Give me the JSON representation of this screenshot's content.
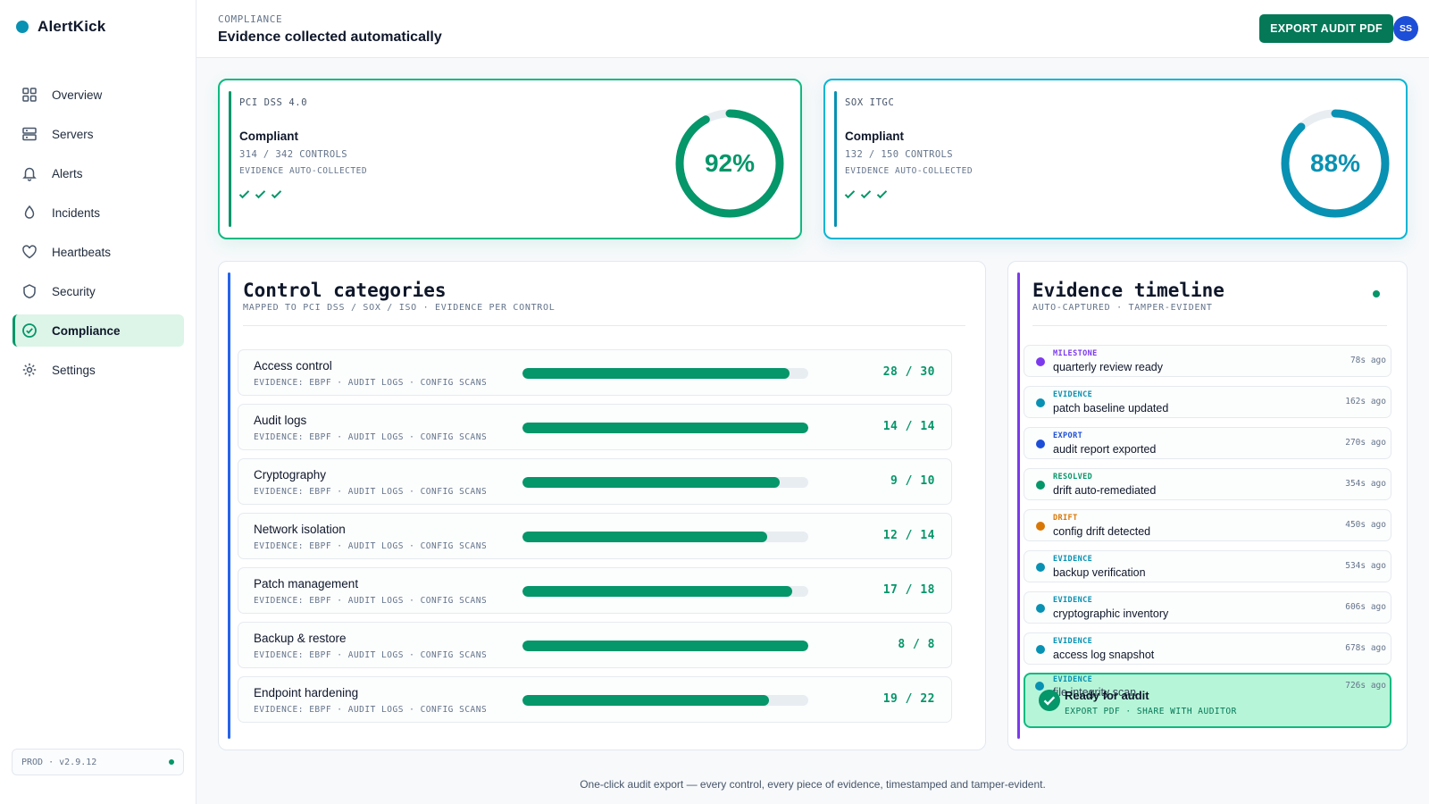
{
  "app": {
    "name": "AlertKick"
  },
  "sidebar": {
    "items": [
      {
        "label": "Overview",
        "icon": "grid-icon",
        "active": false
      },
      {
        "label": "Servers",
        "icon": "server-icon",
        "active": false
      },
      {
        "label": "Alerts",
        "icon": "bell-icon",
        "active": false
      },
      {
        "label": "Incidents",
        "icon": "flame-icon",
        "active": false
      },
      {
        "label": "Heartbeats",
        "icon": "heart-icon",
        "active": false
      },
      {
        "label": "Security",
        "icon": "shield-icon",
        "active": false
      },
      {
        "label": "Compliance",
        "icon": "check-circle-icon",
        "active": true
      },
      {
        "label": "Settings",
        "icon": "gear-icon",
        "active": false
      }
    ],
    "env": "PROD · v2.9.12"
  },
  "header": {
    "crumb": "COMPLIANCE",
    "title": "Evidence collected automatically",
    "export_label": "EXPORT AUDIT PDF",
    "avatar_initials": "SS"
  },
  "scores": {
    "pci": {
      "framework": "PCI DSS 4.0",
      "status": "Compliant",
      "controls": "314 / 342 CONTROLS",
      "evidence": "EVIDENCE AUTO-COLLECTED",
      "percent_label": "92%",
      "percent": 92,
      "color": "#059669"
    },
    "sox": {
      "framework": "SOX ITGC",
      "status": "Compliant",
      "controls": "132 / 150 CONTROLS",
      "evidence": "EVIDENCE AUTO-COLLECTED",
      "percent_label": "88%",
      "percent": 88,
      "color": "#0891b2"
    }
  },
  "controls": {
    "title": "Control categories",
    "subtitle": "MAPPED TO PCI DSS / SOX / ISO · EVIDENCE PER CONTROL",
    "rows": [
      {
        "name": "Access control",
        "evidence": "EVIDENCE: EBPF · AUDIT LOGS · CONFIG SCANS",
        "count": "28 / 30",
        "done": 28,
        "total": 30
      },
      {
        "name": "Audit logs",
        "evidence": "EVIDENCE: EBPF · AUDIT LOGS · CONFIG SCANS",
        "count": "14 / 14",
        "done": 14,
        "total": 14
      },
      {
        "name": "Cryptography",
        "evidence": "EVIDENCE: EBPF · AUDIT LOGS · CONFIG SCANS",
        "count": "9 / 10",
        "done": 9,
        "total": 10
      },
      {
        "name": "Network isolation",
        "evidence": "EVIDENCE: EBPF · AUDIT LOGS · CONFIG SCANS",
        "count": "12 / 14",
        "done": 12,
        "total": 14
      },
      {
        "name": "Patch management",
        "evidence": "EVIDENCE: EBPF · AUDIT LOGS · CONFIG SCANS",
        "count": "17 / 18",
        "done": 17,
        "total": 18
      },
      {
        "name": "Backup & restore",
        "evidence": "EVIDENCE: EBPF · AUDIT LOGS · CONFIG SCANS",
        "count": "8 / 8",
        "done": 8,
        "total": 8
      },
      {
        "name": "Endpoint hardening",
        "evidence": "EVIDENCE: EBPF · AUDIT LOGS · CONFIG SCANS",
        "count": "19 / 22",
        "done": 19,
        "total": 22
      }
    ]
  },
  "timeline": {
    "title": "Evidence timeline",
    "subtitle": "AUTO-CAPTURED · TAMPER-EVIDENT",
    "items": [
      {
        "type": "MILESTONE",
        "text": "quarterly review ready",
        "time": "78s ago",
        "color": "#7c3aed"
      },
      {
        "type": "EVIDENCE",
        "text": "patch baseline updated",
        "time": "162s ago",
        "color": "#0891b2"
      },
      {
        "type": "EXPORT",
        "text": "audit report exported",
        "time": "270s ago",
        "color": "#1d4ed8"
      },
      {
        "type": "RESOLVED",
        "text": "drift auto-remediated",
        "time": "354s ago",
        "color": "#059669"
      },
      {
        "type": "DRIFT",
        "text": "config drift detected",
        "time": "450s ago",
        "color": "#d97706"
      },
      {
        "type": "EVIDENCE",
        "text": "backup verification",
        "time": "534s ago",
        "color": "#0891b2"
      },
      {
        "type": "EVIDENCE",
        "text": "cryptographic inventory",
        "time": "606s ago",
        "color": "#0891b2"
      },
      {
        "type": "EVIDENCE",
        "text": "access log snapshot",
        "time": "678s ago",
        "color": "#0891b2"
      }
    ],
    "last": {
      "type": "EVIDENCE",
      "text": "file integrity scan",
      "time": "726s ago"
    },
    "ready": {
      "title": "Ready for audit",
      "subtitle": "EXPORT PDF · SHARE WITH AUDITOR"
    }
  },
  "footer": {
    "note": "One-click audit export — every control, every piece of evidence, timestamped and tamper-evident."
  }
}
